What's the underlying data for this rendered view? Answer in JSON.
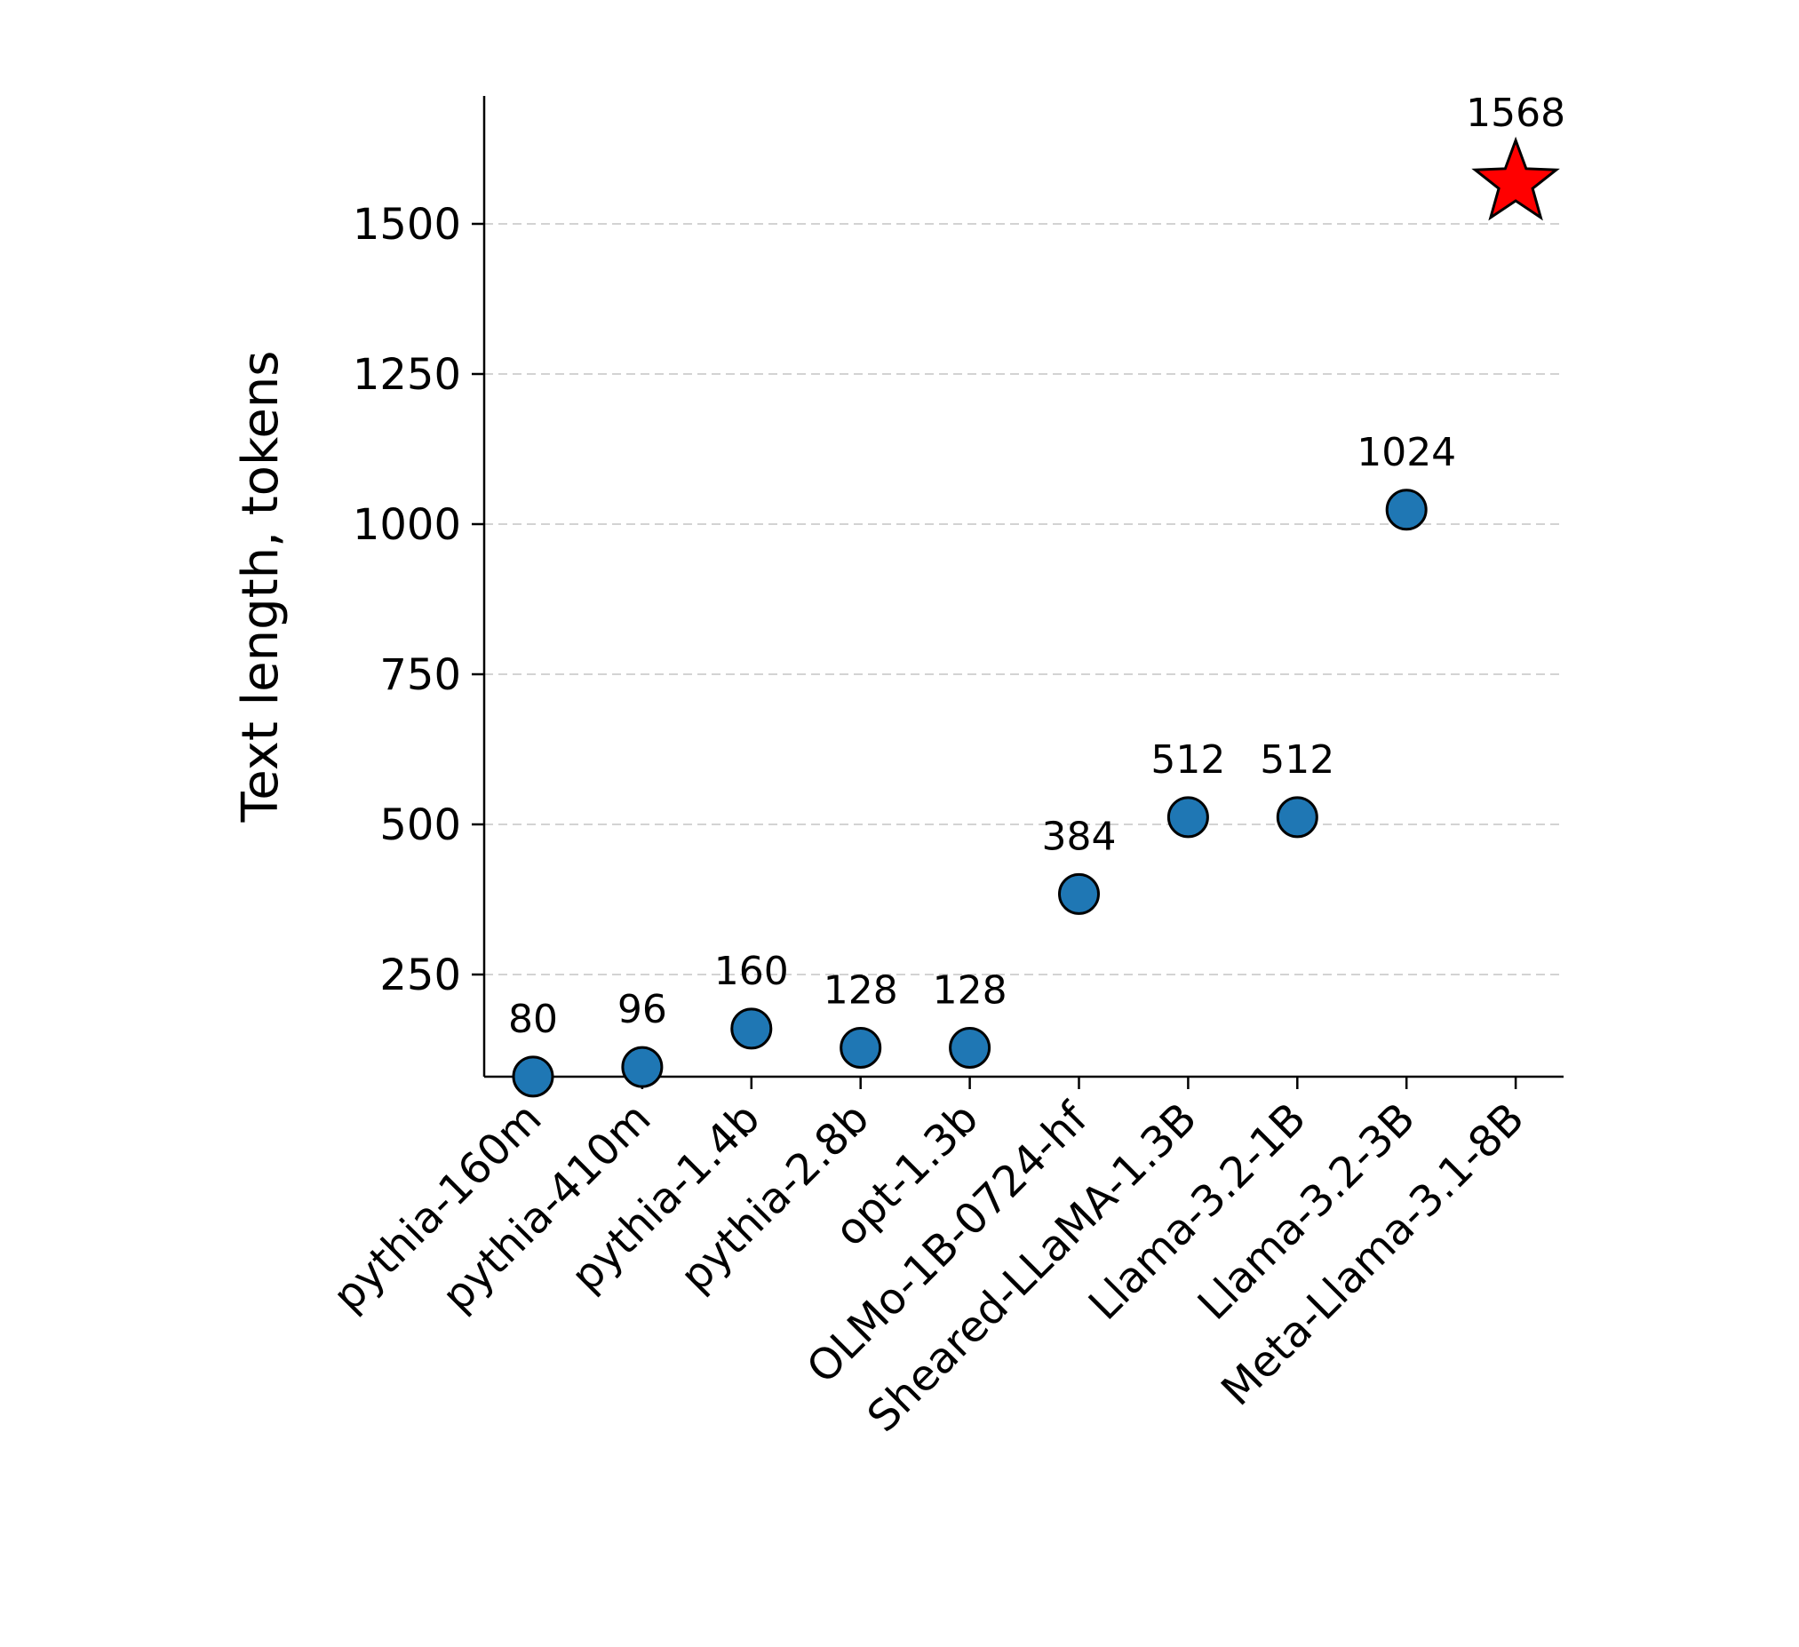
{
  "chart_data": {
    "type": "scatter",
    "categories": [
      "pythia-160m",
      "pythia-410m",
      "pythia-1.4b",
      "pythia-2.8b",
      "opt-1.3b",
      "OLMo-1B-0724-hf",
      "Sheared-LLaMA-1.3B",
      "Llama-3.2-1B",
      "Llama-3.2-3B",
      "Meta-Llama-3.1-8B"
    ],
    "values": [
      80,
      96,
      160,
      128,
      128,
      384,
      512,
      512,
      1024,
      1568
    ],
    "markers": [
      "circle",
      "circle",
      "circle",
      "circle",
      "circle",
      "circle",
      "circle",
      "circle",
      "circle",
      "star"
    ],
    "point_color": "#1f77b4",
    "highlight_color": "#ff0000",
    "edge_color": "#000000",
    "xlabel": "",
    "ylabel": "Text length, tokens",
    "ylim": [
      0,
      1640
    ],
    "yticks": [
      250,
      500,
      750,
      1000,
      1250,
      1500
    ],
    "grid": "horizontal-dashed",
    "data_labels": true
  }
}
